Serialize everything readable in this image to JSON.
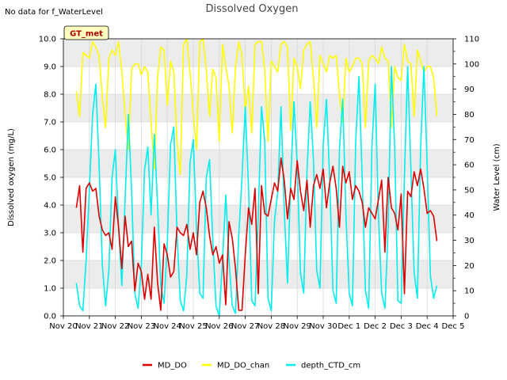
{
  "nodata_note": "No data for f_WaterLevel",
  "chart_data": {
    "type": "line",
    "title": "Dissolved Oxygen",
    "ylabel": "Dissolved oxygen (mg/L)",
    "y2label": "Water Level (cm)",
    "station_tag": "GT_met",
    "ylim": [
      0,
      10
    ],
    "y2lim": [
      0,
      110
    ],
    "yticks": [
      "0.0",
      "1.0",
      "2.0",
      "3.0",
      "4.0",
      "5.0",
      "6.0",
      "7.0",
      "8.0",
      "9.0",
      "10.0"
    ],
    "y2ticks": [
      "0",
      "10",
      "20",
      "30",
      "40",
      "50",
      "60",
      "70",
      "80",
      "90",
      "100",
      "110"
    ],
    "xlim": [
      0,
      15
    ],
    "xticks": [
      "Nov 20",
      "Nov 21",
      "Nov 22",
      "Nov 23",
      "Nov 24",
      "Nov 25",
      "Nov 26",
      "Nov 27",
      "Nov 28",
      "Nov 29",
      "Nov 30",
      "Dec 1",
      "Dec 2",
      "Dec 3",
      "Dec 4",
      "Dec 5"
    ],
    "grid": true,
    "legend_position": "bottom",
    "series": [
      {
        "name": "MD_DO",
        "axis": "left",
        "color": "#dd0000",
        "x": [
          "Nov 20 12:00",
          "Nov 20 15:00",
          "Nov 20 18:00",
          "Nov 20 21:00",
          "Nov 21 00:00",
          "Nov 21 03:00",
          "Nov 21 06:00",
          "Nov 21 09:00",
          "Nov 21 12:00",
          "Nov 21 15:00",
          "Nov 21 18:00",
          "Nov 21 21:00",
          "Nov 22 00:00",
          "Nov 22 03:00",
          "Nov 22 06:00",
          "Nov 22 09:00",
          "Nov 22 12:00",
          "Nov 22 15:00",
          "Nov 22 18:00",
          "Nov 22 21:00",
          "Nov 23 00:00",
          "Nov 23 03:00",
          "Nov 23 06:00",
          "Nov 23 09:00",
          "Nov 23 12:00",
          "Nov 23 15:00",
          "Nov 23 18:00",
          "Nov 23 21:00",
          "Nov 24 00:00",
          "Nov 24 03:00",
          "Nov 24 06:00",
          "Nov 24 09:00",
          "Nov 24 12:00",
          "Nov 24 15:00",
          "Nov 24 18:00",
          "Nov 24 21:00",
          "Nov 25 00:00",
          "Nov 25 03:00",
          "Nov 25 06:00",
          "Nov 25 09:00",
          "Nov 25 12:00",
          "Nov 25 15:00",
          "Nov 25 18:00",
          "Nov 25 21:00",
          "Nov 26 00:00",
          "Nov 26 03:00",
          "Nov 26 06:00",
          "Nov 26 09:00",
          "Nov 26 12:00",
          "Nov 26 15:00",
          "Nov 26 18:00",
          "Nov 26 21:00",
          "Nov 27 00:00",
          "Nov 27 03:00",
          "Nov 27 06:00",
          "Nov 27 09:00",
          "Nov 27 12:00",
          "Nov 27 15:00",
          "Nov 27 18:00",
          "Nov 27 21:00",
          "Nov 28 00:00",
          "Nov 28 03:00",
          "Nov 28 06:00",
          "Nov 28 09:00",
          "Nov 28 12:00",
          "Nov 28 15:00",
          "Nov 28 18:00",
          "Nov 28 21:00",
          "Nov 29 00:00",
          "Nov 29 03:00",
          "Nov 29 06:00",
          "Nov 29 09:00",
          "Nov 29 12:00",
          "Nov 29 15:00",
          "Nov 29 18:00",
          "Nov 29 21:00",
          "Nov 30 00:00",
          "Nov 30 03:00",
          "Nov 30 06:00",
          "Nov 30 09:00",
          "Nov 30 12:00",
          "Nov 30 15:00",
          "Nov 30 18:00",
          "Nov 30 21:00",
          "Dec 1 00:00",
          "Dec 1 03:00",
          "Dec 1 06:00",
          "Dec 1 09:00",
          "Dec 1 12:00",
          "Dec 1 15:00",
          "Dec 1 18:00",
          "Dec 1 21:00",
          "Dec 2 00:00",
          "Dec 2 03:00",
          "Dec 2 06:00",
          "Dec 2 09:00",
          "Dec 2 12:00",
          "Dec 2 15:00",
          "Dec 2 18:00",
          "Dec 2 21:00",
          "Dec 3 00:00",
          "Dec 3 03:00",
          "Dec 3 06:00",
          "Dec 3 09:00",
          "Dec 3 12:00",
          "Dec 3 15:00",
          "Dec 3 18:00",
          "Dec 3 21:00",
          "Dec 4 00:00",
          "Dec 4 03:00",
          "Dec 4 06:00",
          "Dec 4 09:00"
        ],
        "values": [
          3.9,
          4.7,
          2.3,
          4.6,
          4.8,
          4.5,
          4.6,
          3.6,
          3.1,
          2.9,
          3.0,
          2.4,
          4.3,
          3.2,
          1.7,
          3.6,
          2.5,
          2.7,
          0.9,
          1.9,
          1.6,
          0.6,
          1.5,
          0.6,
          3.2,
          1.2,
          0.2,
          2.6,
          2.2,
          1.4,
          1.6,
          3.2,
          3.0,
          2.9,
          3.3,
          2.4,
          3.0,
          2.2,
          4.1,
          4.5,
          3.9,
          2.9,
          2.2,
          2.5,
          1.9,
          2.2,
          0.4,
          3.4,
          2.8,
          1.7,
          0.2,
          0.2,
          2.2,
          3.9,
          3.3,
          4.6,
          0.8,
          4.7,
          3.7,
          3.6,
          4.2,
          4.8,
          4.5,
          5.7,
          4.9,
          3.5,
          4.6,
          4.2,
          5.6,
          4.5,
          3.8,
          4.9,
          3.2,
          4.7,
          5.1,
          4.6,
          5.3,
          3.9,
          4.8,
          5.4,
          4.6,
          3.2,
          5.4,
          4.8,
          5.2,
          4.2,
          4.7,
          4.5,
          4.1,
          3.2,
          3.9,
          3.7,
          3.5,
          4.2,
          4.9,
          2.3,
          5.0,
          3.9,
          3.7,
          3.1,
          4.4,
          0.8,
          4.5,
          4.3,
          5.2,
          4.7,
          5.3,
          4.6,
          3.7,
          3.8,
          3.6,
          2.7
        ]
      },
      {
        "name": "MD_DO_chan",
        "axis": "left",
        "color": "#ffff00",
        "x": [
          "Nov 20 12:00",
          "Nov 20 15:00",
          "Nov 20 18:00",
          "Nov 20 21:00",
          "Nov 21 00:00",
          "Nov 21 03:00",
          "Nov 21 06:00",
          "Nov 21 09:00",
          "Nov 21 12:00",
          "Nov 21 15:00",
          "Nov 21 18:00",
          "Nov 21 21:00",
          "Nov 22 00:00",
          "Nov 22 03:00",
          "Nov 22 06:00",
          "Nov 22 09:00",
          "Nov 22 12:00",
          "Nov 22 15:00",
          "Nov 22 18:00",
          "Nov 22 21:00",
          "Nov 23 00:00",
          "Nov 23 03:00",
          "Nov 23 06:00",
          "Nov 23 09:00",
          "Nov 23 12:00",
          "Nov 23 15:00",
          "Nov 23 18:00",
          "Nov 23 21:00",
          "Nov 24 00:00",
          "Nov 24 03:00",
          "Nov 24 06:00",
          "Nov 24 09:00",
          "Nov 24 12:00",
          "Nov 24 15:00",
          "Nov 24 18:00",
          "Nov 24 21:00",
          "Nov 25 00:00",
          "Nov 25 03:00",
          "Nov 25 06:00",
          "Nov 25 09:00",
          "Nov 25 12:00",
          "Nov 25 15:00",
          "Nov 25 18:00",
          "Nov 25 21:00",
          "Nov 26 00:00",
          "Nov 26 03:00",
          "Nov 26 06:00",
          "Nov 26 09:00",
          "Nov 26 12:00",
          "Nov 26 15:00",
          "Nov 26 18:00",
          "Nov 26 21:00",
          "Nov 27 00:00",
          "Nov 27 03:00",
          "Nov 27 06:00",
          "Nov 27 09:00",
          "Nov 27 12:00",
          "Nov 27 15:00",
          "Nov 27 18:00",
          "Nov 27 21:00",
          "Nov 28 00:00",
          "Nov 28 03:00",
          "Nov 28 06:00",
          "Nov 28 09:00",
          "Nov 28 12:00",
          "Nov 28 15:00",
          "Nov 28 18:00",
          "Nov 28 21:00",
          "Nov 29 00:00",
          "Nov 29 03:00",
          "Nov 29 06:00",
          "Nov 29 09:00",
          "Nov 29 12:00",
          "Nov 29 15:00",
          "Nov 29 18:00",
          "Nov 29 21:00",
          "Nov 30 00:00",
          "Nov 30 03:00",
          "Nov 30 06:00",
          "Nov 30 09:00",
          "Nov 30 12:00",
          "Nov 30 15:00",
          "Nov 30 18:00",
          "Nov 30 21:00",
          "Dec 1 00:00",
          "Dec 1 03:00",
          "Dec 1 06:00",
          "Dec 1 09:00",
          "Dec 1 12:00",
          "Dec 1 15:00",
          "Dec 1 18:00",
          "Dec 1 21:00",
          "Dec 2 00:00",
          "Dec 2 03:00",
          "Dec 2 06:00",
          "Dec 2 09:00",
          "Dec 2 12:00",
          "Dec 2 15:00",
          "Dec 2 18:00",
          "Dec 2 21:00",
          "Dec 3 00:00",
          "Dec 3 03:00",
          "Dec 3 06:00",
          "Dec 3 09:00",
          "Dec 3 12:00",
          "Dec 3 15:00",
          "Dec 3 18:00",
          "Dec 3 21:00",
          "Dec 4 00:00",
          "Dec 4 03:00",
          "Dec 4 06:00",
          "Dec 4 09:00"
        ],
        "values": [
          8.1,
          7.2,
          9.5,
          9.4,
          9.3,
          9.9,
          9.7,
          9.4,
          7.9,
          6.8,
          9.3,
          9.6,
          9.4,
          9.9,
          8.8,
          7.3,
          6.0,
          8.9,
          9.1,
          9.1,
          8.7,
          9.0,
          8.8,
          7.0,
          5.3,
          8.6,
          9.7,
          9.6,
          7.6,
          9.2,
          8.8,
          6.3,
          5.1,
          9.8,
          10.0,
          8.8,
          7.3,
          6.0,
          9.9,
          10.0,
          8.9,
          7.2,
          8.9,
          8.6,
          6.3,
          9.8,
          9.0,
          8.3,
          6.6,
          9.0,
          9.9,
          9.4,
          7.4,
          8.3,
          6.6,
          9.8,
          9.9,
          9.9,
          8.9,
          6.3,
          9.2,
          9.0,
          8.8,
          9.8,
          9.9,
          9.7,
          6.7,
          9.3,
          9.0,
          8.2,
          9.6,
          9.8,
          9.9,
          8.6,
          6.8,
          9.4,
          9.1,
          8.8,
          9.4,
          9.3,
          9.4,
          8.0,
          7.0,
          9.3,
          8.8,
          9.0,
          9.3,
          9.3,
          9.1,
          6.8,
          9.2,
          9.4,
          9.3,
          9.1,
          9.7,
          9.3,
          9.2,
          6.8,
          9.0,
          8.6,
          8.5,
          9.8,
          9.2,
          9.1,
          7.2,
          9.6,
          9.2,
          8.8,
          9.0,
          9.0,
          8.6,
          7.2
        ]
      },
      {
        "name": "depth_CTD_cm",
        "axis": "right",
        "color": "#00eeee",
        "x": [
          "Nov 20 12:00",
          "Nov 20 15:00",
          "Nov 20 18:00",
          "Nov 20 21:00",
          "Nov 21 00:00",
          "Nov 21 03:00",
          "Nov 21 06:00",
          "Nov 21 09:00",
          "Nov 21 12:00",
          "Nov 21 15:00",
          "Nov 21 18:00",
          "Nov 21 21:00",
          "Nov 22 00:00",
          "Nov 22 03:00",
          "Nov 22 06:00",
          "Nov 22 09:00",
          "Nov 22 12:00",
          "Nov 22 15:00",
          "Nov 22 18:00",
          "Nov 22 21:00",
          "Nov 23 00:00",
          "Nov 23 03:00",
          "Nov 23 06:00",
          "Nov 23 09:00",
          "Nov 23 12:00",
          "Nov 23 15:00",
          "Nov 23 18:00",
          "Nov 23 21:00",
          "Nov 24 00:00",
          "Nov 24 03:00",
          "Nov 24 06:00",
          "Nov 24 09:00",
          "Nov 24 12:00",
          "Nov 24 15:00",
          "Nov 24 18:00",
          "Nov 24 21:00",
          "Nov 25 00:00",
          "Nov 25 03:00",
          "Nov 25 06:00",
          "Nov 25 09:00",
          "Nov 25 12:00",
          "Nov 25 15:00",
          "Nov 25 18:00",
          "Nov 25 21:00",
          "Nov 26 00:00",
          "Nov 26 03:00",
          "Nov 26 06:00",
          "Nov 26 09:00",
          "Nov 26 12:00",
          "Nov 26 15:00",
          "Nov 26 18:00",
          "Nov 26 21:00",
          "Nov 27 00:00",
          "Nov 27 03:00",
          "Nov 27 06:00",
          "Nov 27 09:00",
          "Nov 27 12:00",
          "Nov 27 15:00",
          "Nov 27 18:00",
          "Nov 27 21:00",
          "Nov 28 00:00",
          "Nov 28 03:00",
          "Nov 28 06:00",
          "Nov 28 09:00",
          "Nov 28 12:00",
          "Nov 28 15:00",
          "Nov 28 18:00",
          "Nov 28 21:00",
          "Nov 29 00:00",
          "Nov 29 03:00",
          "Nov 29 06:00",
          "Nov 29 09:00",
          "Nov 29 12:00",
          "Nov 29 15:00",
          "Nov 29 18:00",
          "Nov 29 21:00",
          "Nov 30 00:00",
          "Nov 30 03:00",
          "Nov 30 06:00",
          "Nov 30 09:00",
          "Nov 30 12:00",
          "Nov 30 15:00",
          "Nov 30 18:00",
          "Nov 30 21:00",
          "Dec 1 00:00",
          "Dec 1 03:00",
          "Dec 1 06:00",
          "Dec 1 09:00",
          "Dec 1 12:00",
          "Dec 1 15:00",
          "Dec 1 18:00",
          "Dec 1 21:00",
          "Dec 2 00:00",
          "Dec 2 03:00",
          "Dec 2 06:00",
          "Dec 2 09:00",
          "Dec 2 12:00",
          "Dec 2 15:00",
          "Dec 2 18:00",
          "Dec 2 21:00",
          "Dec 3 00:00",
          "Dec 3 03:00",
          "Dec 3 06:00",
          "Dec 3 09:00",
          "Dec 3 12:00",
          "Dec 3 15:00",
          "Dec 3 18:00",
          "Dec 3 21:00",
          "Dec 4 00:00",
          "Dec 4 03:00",
          "Dec 4 06:00",
          "Dec 4 09:00"
        ],
        "values": [
          13,
          4,
          2,
          22,
          50,
          80,
          92,
          60,
          20,
          4,
          18,
          55,
          66,
          35,
          12,
          46,
          80,
          50,
          9,
          3,
          20,
          58,
          67,
          40,
          72,
          44,
          12,
          5,
          29,
          68,
          75,
          32,
          6,
          2,
          16,
          61,
          70,
          34,
          9,
          7,
          55,
          62,
          30,
          4,
          0,
          22,
          48,
          22,
          4,
          1,
          32,
          55,
          83,
          51,
          6,
          4,
          40,
          83,
          69,
          7,
          2,
          38,
          49,
          83,
          42,
          13,
          54,
          85,
          60,
          17,
          9,
          57,
          85,
          62,
          18,
          11,
          68,
          86,
          54,
          10,
          5,
          66,
          86,
          40,
          9,
          4,
          69,
          95,
          55,
          10,
          3,
          67,
          92,
          40,
          9,
          3,
          35,
          99,
          67,
          6,
          5,
          55,
          99,
          58,
          17,
          7,
          67,
          99,
          60,
          16,
          7,
          12
        ]
      }
    ]
  }
}
